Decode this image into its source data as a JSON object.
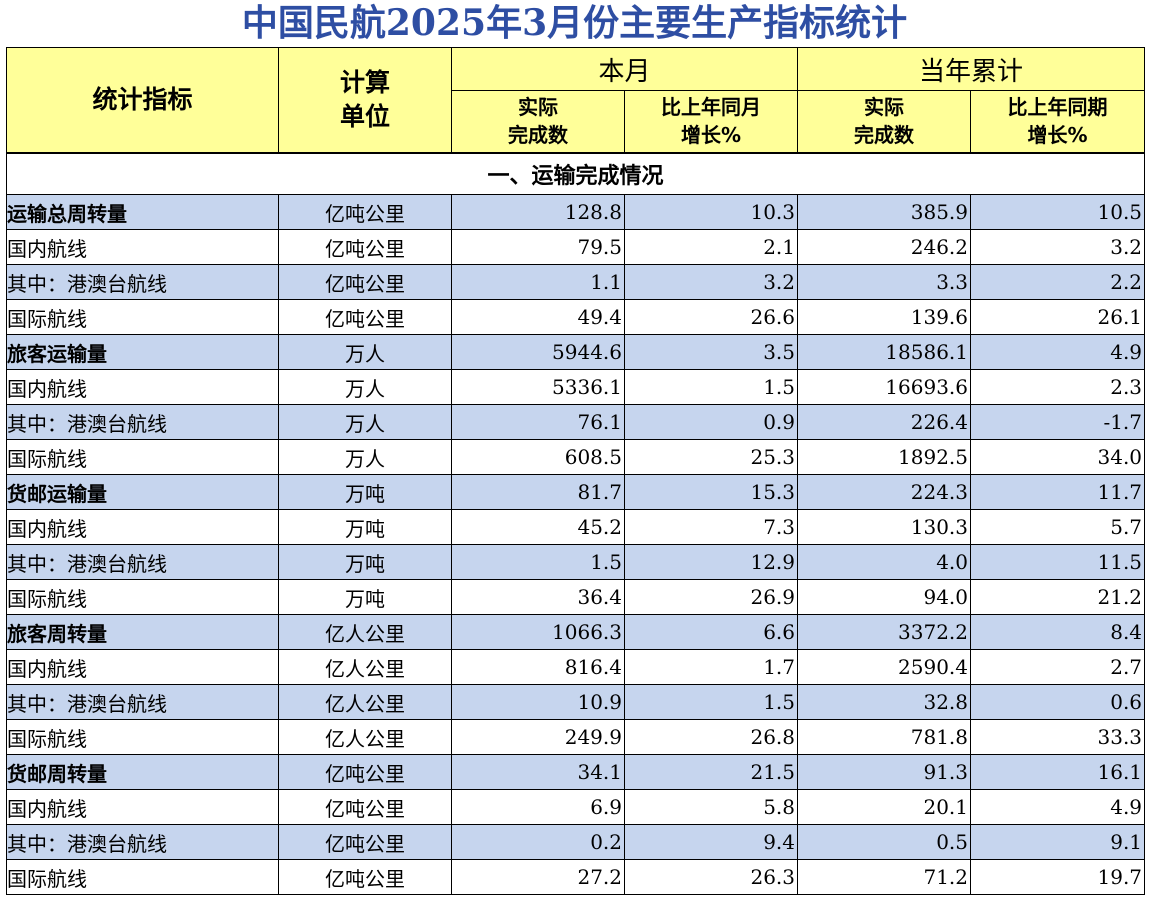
{
  "title": "中国民航2025年3月份主要生产指标统计",
  "header": {
    "indicator": "统计指标",
    "unit_line1": "计算",
    "unit_line2": "单位",
    "month_group": "本月",
    "ytd_group": "当年累计",
    "actual_line1": "实际",
    "actual_line2": "完成数",
    "month_growth_line1": "比上年同月",
    "month_growth_line2": "增长%",
    "ytd_growth_line1": "比上年同期",
    "ytd_growth_line2": "增长%"
  },
  "section_title": "一、运输完成情况",
  "rows": [
    {
      "label": "运输总周转量",
      "level": "top",
      "unit": "亿吨公里",
      "month_actual": "128.8",
      "month_growth": "10.3",
      "ytd_actual": "385.9",
      "ytd_growth": "10.5"
    },
    {
      "label": "国内航线",
      "level": "sub",
      "unit": "亿吨公里",
      "month_actual": "79.5",
      "month_growth": "2.1",
      "ytd_actual": "246.2",
      "ytd_growth": "3.2"
    },
    {
      "label": "其中：港澳台航线",
      "level": "subsub",
      "unit": "亿吨公里",
      "month_actual": "1.1",
      "month_growth": "3.2",
      "ytd_actual": "3.3",
      "ytd_growth": "2.2"
    },
    {
      "label": "国际航线",
      "level": "sub",
      "unit": "亿吨公里",
      "month_actual": "49.4",
      "month_growth": "26.6",
      "ytd_actual": "139.6",
      "ytd_growth": "26.1"
    },
    {
      "label": "旅客运输量",
      "level": "top",
      "unit": "万人",
      "month_actual": "5944.6",
      "month_growth": "3.5",
      "ytd_actual": "18586.1",
      "ytd_growth": "4.9"
    },
    {
      "label": "国内航线",
      "level": "sub",
      "unit": "万人",
      "month_actual": "5336.1",
      "month_growth": "1.5",
      "ytd_actual": "16693.6",
      "ytd_growth": "2.3"
    },
    {
      "label": "其中：港澳台航线",
      "level": "subsub",
      "unit": "万人",
      "month_actual": "76.1",
      "month_growth": "0.9",
      "ytd_actual": "226.4",
      "ytd_growth": "-1.7"
    },
    {
      "label": "国际航线",
      "level": "sub",
      "unit": "万人",
      "month_actual": "608.5",
      "month_growth": "25.3",
      "ytd_actual": "1892.5",
      "ytd_growth": "34.0"
    },
    {
      "label": "货邮运输量",
      "level": "top",
      "unit": "万吨",
      "month_actual": "81.7",
      "month_growth": "15.3",
      "ytd_actual": "224.3",
      "ytd_growth": "11.7"
    },
    {
      "label": "国内航线",
      "level": "sub",
      "unit": "万吨",
      "month_actual": "45.2",
      "month_growth": "7.3",
      "ytd_actual": "130.3",
      "ytd_growth": "5.7"
    },
    {
      "label": "其中：港澳台航线",
      "level": "subsub",
      "unit": "万吨",
      "month_actual": "1.5",
      "month_growth": "12.9",
      "ytd_actual": "4.0",
      "ytd_growth": "11.5"
    },
    {
      "label": "国际航线",
      "level": "sub",
      "unit": "万吨",
      "month_actual": "36.4",
      "month_growth": "26.9",
      "ytd_actual": "94.0",
      "ytd_growth": "21.2"
    },
    {
      "label": "旅客周转量",
      "level": "top",
      "unit": "亿人公里",
      "month_actual": "1066.3",
      "month_growth": "6.6",
      "ytd_actual": "3372.2",
      "ytd_growth": "8.4"
    },
    {
      "label": "国内航线",
      "level": "sub",
      "unit": "亿人公里",
      "month_actual": "816.4",
      "month_growth": "1.7",
      "ytd_actual": "2590.4",
      "ytd_growth": "2.7"
    },
    {
      "label": "其中：港澳台航线",
      "level": "subsub",
      "unit": "亿人公里",
      "month_actual": "10.9",
      "month_growth": "1.5",
      "ytd_actual": "32.8",
      "ytd_growth": "0.6"
    },
    {
      "label": "国际航线",
      "level": "sub",
      "unit": "亿人公里",
      "month_actual": "249.9",
      "month_growth": "26.8",
      "ytd_actual": "781.8",
      "ytd_growth": "33.3"
    },
    {
      "label": "货邮周转量",
      "level": "top",
      "unit": "亿吨公里",
      "month_actual": "34.1",
      "month_growth": "21.5",
      "ytd_actual": "91.3",
      "ytd_growth": "16.1"
    },
    {
      "label": "国内航线",
      "level": "sub",
      "unit": "亿吨公里",
      "month_actual": "6.9",
      "month_growth": "5.8",
      "ytd_actual": "20.1",
      "ytd_growth": "4.9"
    },
    {
      "label": "其中：港澳台航线",
      "level": "subsub",
      "unit": "亿吨公里",
      "month_actual": "0.2",
      "month_growth": "9.4",
      "ytd_actual": "0.5",
      "ytd_growth": "9.1"
    },
    {
      "label": "国际航线",
      "level": "sub",
      "unit": "亿吨公里",
      "month_actual": "27.2",
      "month_growth": "26.3",
      "ytd_actual": "71.2",
      "ytd_growth": "19.7"
    }
  ],
  "colors": {
    "title": "#2e4ea3",
    "header_bg": "#ffff99",
    "row_blue": "#c6d5ee",
    "row_white": "#ffffff"
  }
}
